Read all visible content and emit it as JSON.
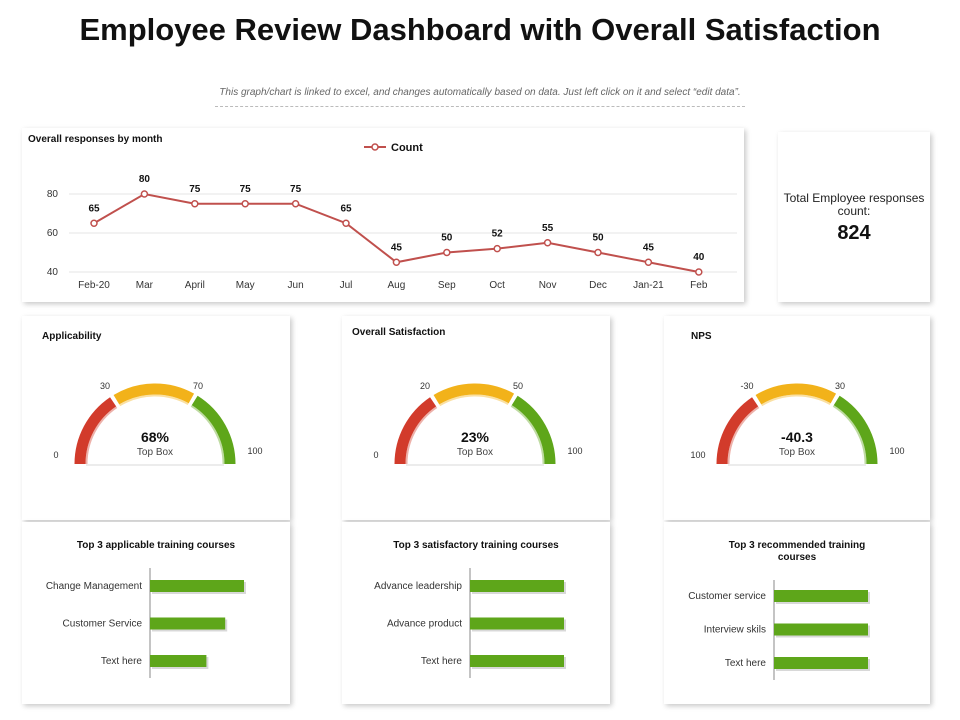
{
  "header": {
    "title": "Employee Review Dashboard with Overall Satisfaction",
    "subtitle": "This graph/chart is linked to excel, and changes automatically based on data. Just left click on it and select “edit data”."
  },
  "colors": {
    "line": "#c0504d",
    "bar": "#5ea61a",
    "gauge_red": "#d23b2b",
    "gauge_yellow": "#f2b21a",
    "gauge_green": "#5ea61a"
  },
  "total": {
    "label": "Total Employee responses count:",
    "value": "824"
  },
  "chart_data": [
    {
      "type": "line",
      "title": "Overall responses by month",
      "legend": "Count",
      "categories": [
        "Feb-20",
        "Mar",
        "April",
        "May",
        "Jun",
        "Jul",
        "Aug",
        "Sep",
        "Oct",
        "Nov",
        "Dec",
        "Jan-21",
        "Feb"
      ],
      "values": [
        65,
        80,
        75,
        75,
        75,
        65,
        45,
        50,
        52,
        55,
        50,
        45,
        40
      ],
      "yticks": [
        40,
        60,
        80
      ],
      "ylim": [
        40,
        85
      ]
    },
    {
      "type": "gauge",
      "title": "Applicability",
      "value": "68%",
      "sublabel": "Top Box",
      "labels": {
        "min": "0",
        "t1": "30",
        "t2": "70",
        "max": "100"
      }
    },
    {
      "type": "gauge",
      "title": "Overall Satisfaction",
      "value": "23%",
      "sublabel": "Top Box",
      "labels": {
        "min": "0",
        "t1": "20",
        "t2": "50",
        "max": "100"
      }
    },
    {
      "type": "gauge",
      "title": "NPS",
      "value": "-40.3",
      "sublabel": "Top Box",
      "labels": {
        "min": "100",
        "t1": "-30",
        "t2": "30",
        "max": "100"
      }
    },
    {
      "type": "bar",
      "orientation": "horizontal",
      "title": "Top 3 applicable training courses",
      "categories": [
        "Change Management",
        "Customer Service",
        "Text here"
      ],
      "values": [
        100,
        80,
        60
      ],
      "xlim": [
        0,
        100
      ]
    },
    {
      "type": "bar",
      "orientation": "horizontal",
      "title": "Top 3 satisfactory training courses",
      "categories": [
        "Advance leadership",
        "Advance product",
        "Text here"
      ],
      "values": [
        100,
        100,
        100
      ],
      "xlim": [
        0,
        100
      ]
    },
    {
      "type": "bar",
      "orientation": "horizontal",
      "title_lines": [
        "Top 3 recommended training",
        "courses"
      ],
      "categories": [
        "Customer service",
        "Interview skils",
        "Text here"
      ],
      "values": [
        100,
        100,
        100
      ],
      "xlim": [
        0,
        100
      ]
    }
  ]
}
